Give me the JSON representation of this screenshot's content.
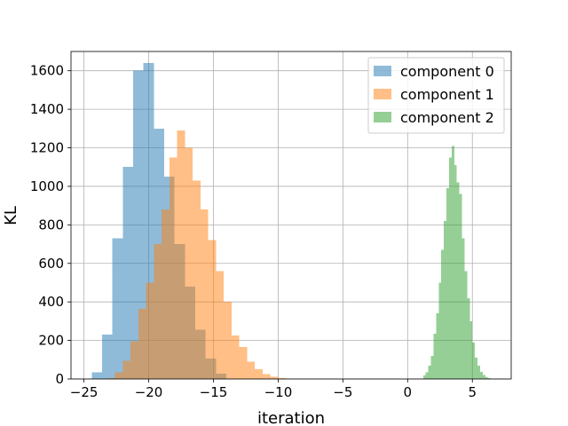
{
  "chart_data": {
    "type": "histogram",
    "title": "",
    "xlabel": "iteration",
    "ylabel": "KL",
    "xlim": [
      -26,
      8
    ],
    "ylim": [
      0,
      1700
    ],
    "xticks": [
      -25,
      -20,
      -15,
      -10,
      -5,
      0,
      5
    ],
    "yticks": [
      0,
      200,
      400,
      600,
      800,
      1000,
      1200,
      1400,
      1600
    ],
    "grid": true,
    "legend_position": "top-right",
    "series": [
      {
        "name": "component 0",
        "color": "#1f77b4",
        "opacity": 0.5,
        "bin_width": 0.8,
        "bins": [
          {
            "x0": -24.4,
            "count": 35
          },
          {
            "x0": -23.6,
            "count": 230
          },
          {
            "x0": -22.8,
            "count": 730
          },
          {
            "x0": -22.0,
            "count": 1100
          },
          {
            "x0": -21.2,
            "count": 1600
          },
          {
            "x0": -20.4,
            "count": 1640
          },
          {
            "x0": -19.6,
            "count": 1300
          },
          {
            "x0": -18.8,
            "count": 1050
          },
          {
            "x0": -18.0,
            "count": 700
          },
          {
            "x0": -17.2,
            "count": 480
          },
          {
            "x0": -16.4,
            "count": 255
          },
          {
            "x0": -15.6,
            "count": 105
          },
          {
            "x0": -14.8,
            "count": 28
          }
        ]
      },
      {
        "name": "component 1",
        "color": "#ff7f0e",
        "opacity": 0.5,
        "bin_width": 0.6,
        "bins": [
          {
            "x0": -23.2,
            "count": 5
          },
          {
            "x0": -22.6,
            "count": 35
          },
          {
            "x0": -22.0,
            "count": 95
          },
          {
            "x0": -21.4,
            "count": 195
          },
          {
            "x0": -20.8,
            "count": 365
          },
          {
            "x0": -20.2,
            "count": 500
          },
          {
            "x0": -19.6,
            "count": 700
          },
          {
            "x0": -19.0,
            "count": 880
          },
          {
            "x0": -18.4,
            "count": 1150
          },
          {
            "x0": -17.8,
            "count": 1290
          },
          {
            "x0": -17.2,
            "count": 1200
          },
          {
            "x0": -16.6,
            "count": 1030
          },
          {
            "x0": -16.0,
            "count": 880
          },
          {
            "x0": -15.4,
            "count": 720
          },
          {
            "x0": -14.8,
            "count": 560
          },
          {
            "x0": -14.2,
            "count": 400
          },
          {
            "x0": -13.6,
            "count": 225
          },
          {
            "x0": -13.0,
            "count": 165
          },
          {
            "x0": -12.4,
            "count": 90
          },
          {
            "x0": -11.8,
            "count": 50
          },
          {
            "x0": -11.2,
            "count": 25
          },
          {
            "x0": -10.6,
            "count": 12
          },
          {
            "x0": -10.0,
            "count": 4
          },
          {
            "x0": -9.4,
            "count": 2
          },
          {
            "x0": -8.8,
            "count": 1
          }
        ]
      },
      {
        "name": "component 2",
        "color": "#2ca02c",
        "opacity": 0.5,
        "bin_width": 0.2,
        "bins": [
          {
            "x0": 1.2,
            "count": 18
          },
          {
            "x0": 1.4,
            "count": 35
          },
          {
            "x0": 1.6,
            "count": 70
          },
          {
            "x0": 1.8,
            "count": 120
          },
          {
            "x0": 2.0,
            "count": 235
          },
          {
            "x0": 2.2,
            "count": 340
          },
          {
            "x0": 2.4,
            "count": 500
          },
          {
            "x0": 2.6,
            "count": 670
          },
          {
            "x0": 2.8,
            "count": 820
          },
          {
            "x0": 3.0,
            "count": 990
          },
          {
            "x0": 3.2,
            "count": 1150
          },
          {
            "x0": 3.4,
            "count": 1210
          },
          {
            "x0": 3.6,
            "count": 1110
          },
          {
            "x0": 3.8,
            "count": 1020
          },
          {
            "x0": 4.0,
            "count": 960
          },
          {
            "x0": 4.2,
            "count": 730
          },
          {
            "x0": 4.4,
            "count": 560
          },
          {
            "x0": 4.6,
            "count": 420
          },
          {
            "x0": 4.8,
            "count": 300
          },
          {
            "x0": 5.0,
            "count": 190
          },
          {
            "x0": 5.2,
            "count": 110
          },
          {
            "x0": 5.4,
            "count": 70
          },
          {
            "x0": 5.6,
            "count": 38
          },
          {
            "x0": 5.8,
            "count": 20
          },
          {
            "x0": 6.0,
            "count": 10
          },
          {
            "x0": 6.2,
            "count": 4
          }
        ]
      }
    ]
  }
}
